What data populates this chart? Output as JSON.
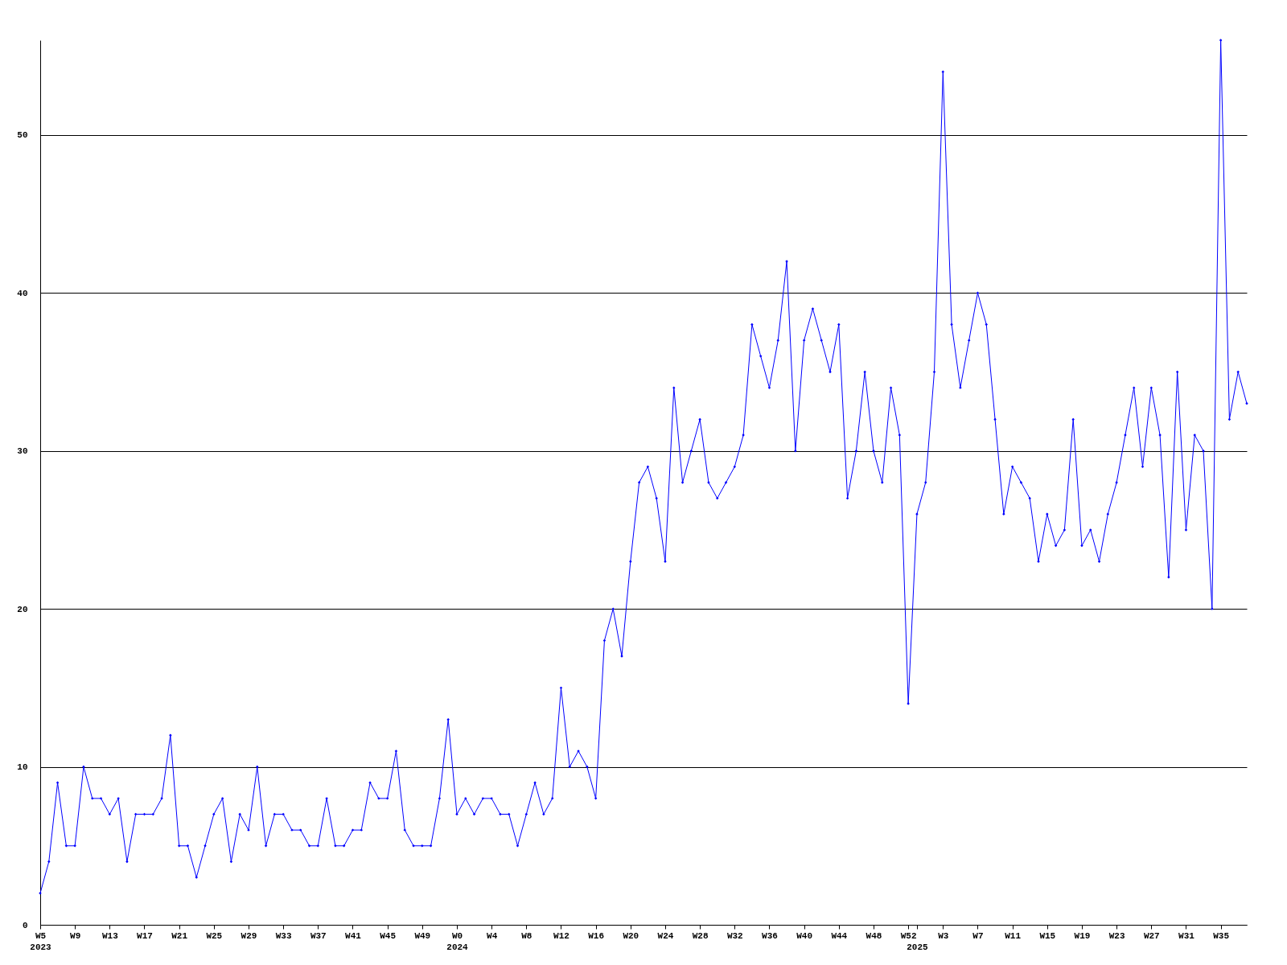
{
  "chart_data": {
    "type": "line",
    "categories": [
      "W5\n2023",
      null,
      null,
      null,
      "W9",
      null,
      null,
      null,
      "W13",
      null,
      null,
      null,
      "W17",
      null,
      null,
      null,
      "W21",
      null,
      null,
      null,
      "W25",
      null,
      null,
      null,
      "W29",
      null,
      null,
      null,
      "W33",
      null,
      null,
      null,
      "W37",
      null,
      null,
      null,
      "W41",
      null,
      null,
      null,
      "W45",
      null,
      null,
      null,
      "W49",
      null,
      null,
      null,
      "W0\n2024",
      null,
      null,
      null,
      "W4",
      null,
      null,
      null,
      "W8",
      null,
      null,
      null,
      "W12",
      null,
      null,
      null,
      "W16",
      null,
      null,
      null,
      "W20",
      null,
      null,
      null,
      "W24",
      null,
      null,
      null,
      "W28",
      null,
      null,
      null,
      "W32",
      null,
      null,
      null,
      "W36",
      null,
      null,
      null,
      "W40",
      null,
      null,
      null,
      "W44",
      null,
      null,
      null,
      "W48",
      null,
      null,
      null,
      "W52",
      "\n2025",
      null,
      null,
      "W3",
      null,
      null,
      null,
      "W7",
      null,
      null,
      null,
      "W11",
      null,
      null,
      null,
      "W15",
      null,
      null,
      null,
      "W19",
      null,
      null,
      null,
      "W23",
      null,
      null,
      null,
      "W27",
      null,
      null,
      null,
      "W31",
      null,
      null,
      null,
      "W35",
      null,
      null,
      null
    ],
    "series": [
      {
        "color": "#0000ff",
        "values": [
          2,
          4,
          9,
          5,
          5,
          10,
          8,
          8,
          7,
          8,
          4,
          7,
          7,
          7,
          8,
          12,
          5,
          5,
          3,
          5,
          7,
          8,
          4,
          7,
          6,
          10,
          5,
          7,
          7,
          6,
          6,
          5,
          5,
          8,
          5,
          5,
          6,
          6,
          9,
          8,
          8,
          11,
          6,
          5,
          5,
          5,
          8,
          13,
          7,
          8,
          7,
          8,
          8,
          7,
          7,
          5,
          7,
          9,
          7,
          8,
          15,
          10,
          11,
          10,
          8,
          18,
          20,
          17,
          23,
          28,
          29,
          27,
          23,
          34,
          28,
          30,
          32,
          28,
          27,
          28,
          29,
          31,
          38,
          36,
          34,
          37,
          42,
          30,
          37,
          39,
          37,
          35,
          38,
          27,
          30,
          35,
          30,
          28,
          34,
          31,
          14,
          26,
          28,
          35,
          54,
          38,
          34,
          37,
          40,
          38,
          32,
          26,
          29,
          28,
          27,
          23,
          26,
          24,
          25,
          32,
          24,
          25,
          23,
          26,
          28,
          31,
          34,
          29,
          34,
          31,
          22,
          35,
          25,
          31,
          30,
          20,
          56,
          32,
          35,
          33
        ]
      }
    ],
    "ylim": [
      0,
      56
    ],
    "yticks": [
      0,
      10,
      20,
      30,
      40,
      50
    ],
    "grid": "y",
    "marker": "diamond",
    "line_style": "solid"
  }
}
